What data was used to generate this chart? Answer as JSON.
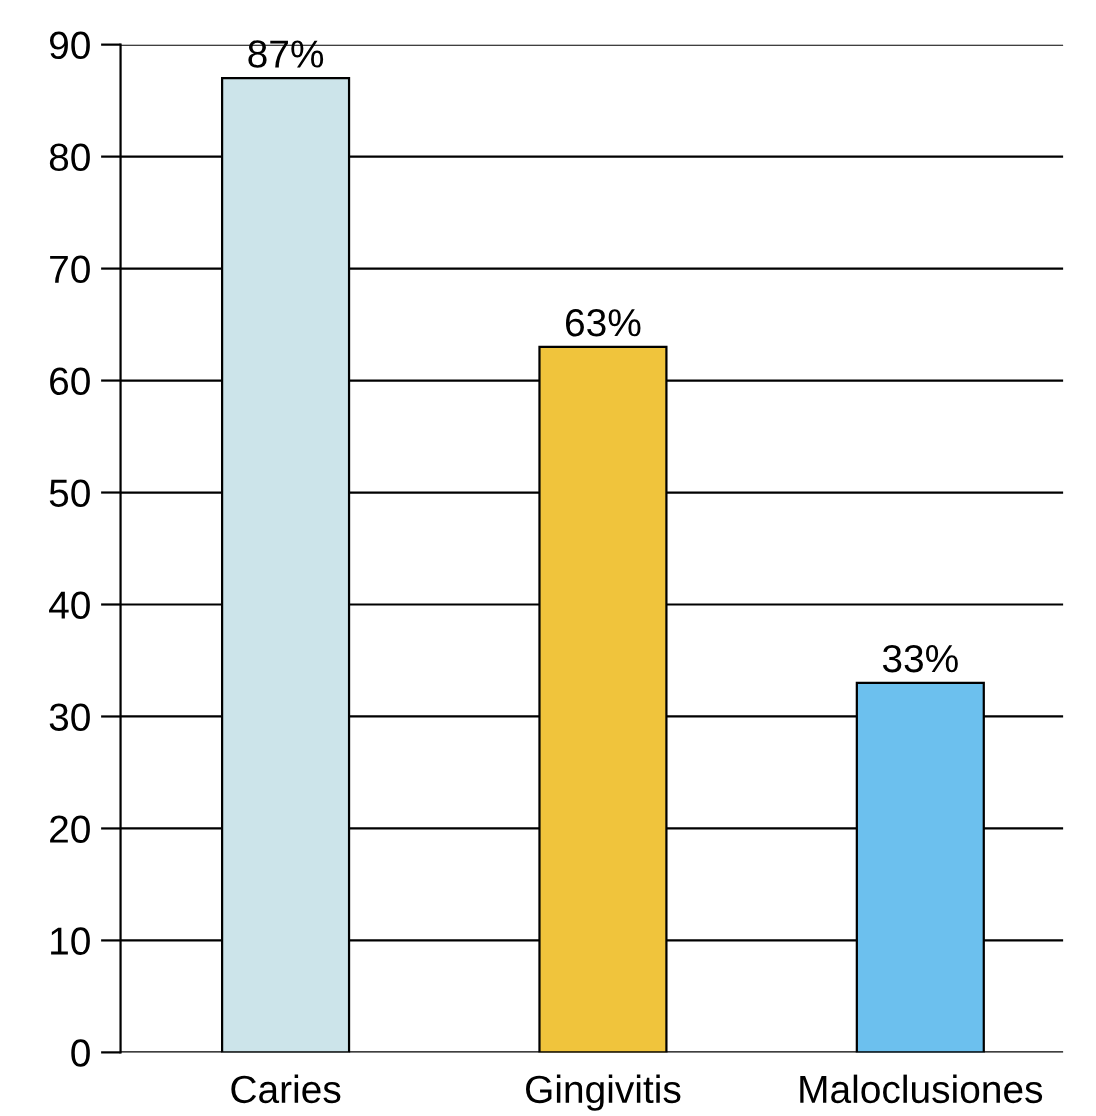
{
  "chart_data": {
    "type": "bar",
    "categories": [
      "Caries",
      "Gingivitis",
      "Maloclusiones"
    ],
    "values": [
      87,
      63,
      33
    ],
    "colors": [
      "#cce4ea",
      "#f0c43c",
      "#6cc0ee"
    ],
    "value_labels": [
      "87%",
      "63%",
      "33%"
    ],
    "ylim": [
      0,
      90
    ],
    "yticks": [
      0,
      10,
      20,
      30,
      40,
      50,
      60,
      70,
      80,
      90
    ],
    "grid": "y",
    "legend": false
  }
}
